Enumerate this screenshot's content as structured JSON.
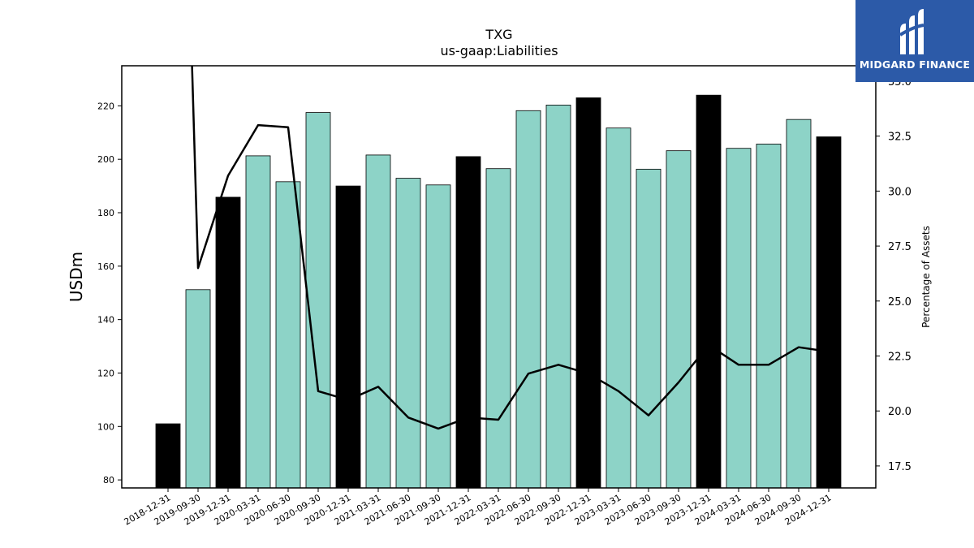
{
  "chart_data": {
    "type": "bar",
    "title": "TXG",
    "subtitle": "us-gaap:Liabilities",
    "ylabel": "USDm",
    "y2label": "Percentage of Assets",
    "ylim": [
      77,
      235
    ],
    "y2lim": [
      16.5,
      35.7
    ],
    "yticks": [
      80,
      100,
      120,
      140,
      160,
      180,
      200,
      220
    ],
    "y2ticks": [
      17.5,
      20.0,
      22.5,
      25.0,
      27.5,
      30.0,
      32.5,
      35.0
    ],
    "categories": [
      "2018-12-31",
      "2019-09-30",
      "2019-12-31",
      "2020-03-31",
      "2020-06-30",
      "2020-09-30",
      "2020-12-31",
      "2021-03-31",
      "2021-06-30",
      "2021-09-30",
      "2021-12-31",
      "2022-03-31",
      "2022-06-30",
      "2022-09-30",
      "2022-12-31",
      "2023-03-31",
      "2023-06-30",
      "2023-09-30",
      "2023-12-31",
      "2024-03-31",
      "2024-06-30",
      "2024-09-30",
      "2024-12-31"
    ],
    "values": [
      101.0,
      151.2,
      185.8,
      201.3,
      191.6,
      217.5,
      190.0,
      201.6,
      192.9,
      190.4,
      201.0,
      196.5,
      218.2,
      220.3,
      223.0,
      211.7,
      196.3,
      203.2,
      224.0,
      204.1,
      205.7,
      214.9,
      208.4
    ],
    "highlight": [
      true,
      false,
      true,
      false,
      false,
      false,
      true,
      false,
      false,
      false,
      true,
      false,
      false,
      false,
      true,
      false,
      false,
      false,
      true,
      false,
      false,
      false,
      true
    ],
    "line_values": [
      null,
      26.5,
      30.7,
      33.0,
      32.9,
      20.9,
      20.5,
      21.1,
      19.7,
      19.2,
      19.7,
      19.6,
      21.7,
      22.1,
      21.7,
      20.9,
      19.8,
      21.3,
      23.0,
      22.1,
      22.1,
      22.9,
      22.7
    ],
    "line_start_offscale_value": 36.0,
    "colors": {
      "bar": "#8dd3c7",
      "highlight_bar": "#000000",
      "line": "#000000"
    }
  },
  "logo": {
    "text": "MIDGARD FINANCE"
  }
}
